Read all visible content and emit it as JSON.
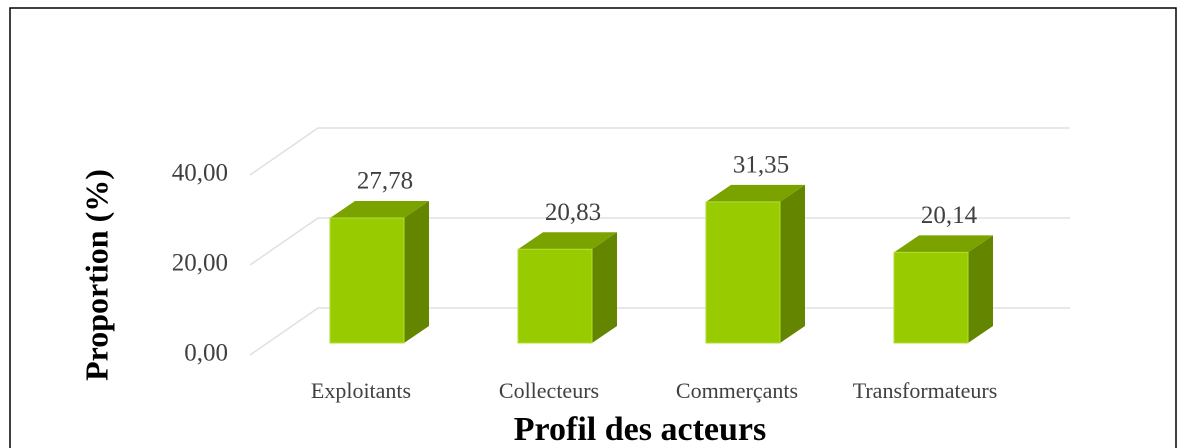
{
  "chart_data": {
    "type": "bar3d",
    "x_label": "Profil des acteurs",
    "y_label": "Proportion (%)",
    "categories": [
      "Exploitants",
      "Collecteurs",
      "Commerçants",
      "Transformateurs"
    ],
    "values": [
      27.78,
      20.83,
      31.35,
      20.14
    ],
    "value_labels": [
      "27,78",
      "20,83",
      "31,35",
      "20,14"
    ],
    "color": "#99cc00",
    "ylim": [
      0,
      40
    ],
    "yticks": [
      {
        "value": 0,
        "label": "0,00"
      },
      {
        "value": 20,
        "label": "20,00"
      },
      {
        "value": 40,
        "label": "40,00"
      }
    ],
    "grid": true
  }
}
